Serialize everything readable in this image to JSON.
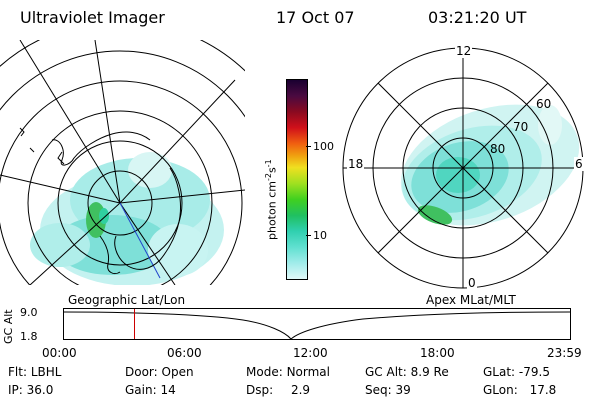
{
  "header": {
    "title": "Ultraviolet Imager",
    "date": "17 Oct 07",
    "time": "03:21:20 UT"
  },
  "colorbar": {
    "unit_main": "photon cm",
    "unit_exp1": "-2",
    "unit_mid": "s",
    "unit_exp2": "-1",
    "ticks": [
      "100",
      "10"
    ],
    "colors": [
      "#1a0030",
      "#4a0a40",
      "#8a0a20",
      "#d0101a",
      "#f06010",
      "#f0a010",
      "#f0e020",
      "#a0e020",
      "#40d020",
      "#20c060",
      "#30d0b0",
      "#60e0d0",
      "#a0ecea",
      "#e0f8f8"
    ]
  },
  "left_map": {
    "label": "Geographic Lat/Lon"
  },
  "right_map": {
    "label": "Apex MLat/MLT",
    "mlt_labels": {
      "top": "12",
      "left": "18",
      "right": "6",
      "bottom": "0"
    },
    "lat_labels": [
      "60",
      "70",
      "80"
    ]
  },
  "timeline": {
    "ylabel": "GC Alt",
    "yticks": [
      "9.0",
      "1.8"
    ],
    "xticks": [
      "00:00",
      "06:00",
      "12:00",
      "18:00",
      "23:59"
    ],
    "current_time_fraction": 0.139
  },
  "status": {
    "row1": [
      {
        "label": "Flt:",
        "value": "LBHL"
      },
      {
        "label": "Door:",
        "value": "Open"
      },
      {
        "label": "Mode:",
        "value": "Normal"
      },
      {
        "label": "GC Alt:",
        "value": "8.9 Re"
      },
      {
        "label": "GLat:",
        "value": "-79.5"
      }
    ],
    "row2": [
      {
        "label": "IP:",
        "value": "36.0"
      },
      {
        "label": "Gain:",
        "value": "14"
      },
      {
        "label": "Dsp:",
        "value": "2.9"
      },
      {
        "label": "Seq:",
        "value": "39"
      },
      {
        "label": "GLon:",
        "value": "17.8"
      }
    ]
  },
  "colors": {
    "aurora_low": "#a0ecea",
    "aurora_mid": "#30d0b0",
    "aurora_high": "#40c040",
    "current_marker": "#cc0000"
  }
}
